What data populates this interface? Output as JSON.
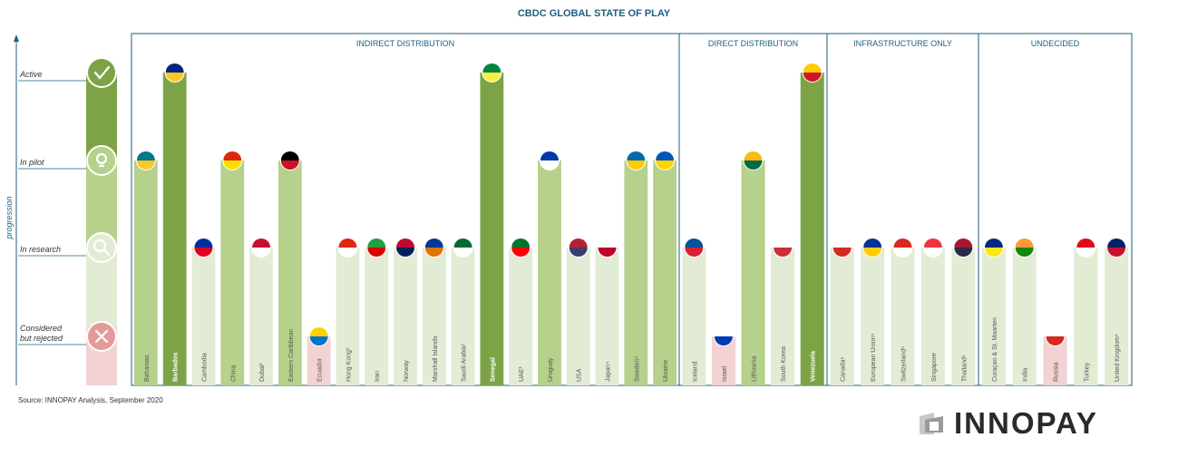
{
  "title": "CBDC GLOBAL STATE OF PLAY",
  "source": "Source: INNOPAY Analysis, September 2020",
  "logo_text": "INNOPAY",
  "chart_data": {
    "type": "bar",
    "title": "CBDC GLOBAL STATE OF PLAY",
    "ylabel": "progression",
    "levels": [
      "Considered but rejected",
      "In research",
      "In pilot",
      "Active"
    ],
    "level_labels": [
      "Considered\nbut rejected",
      "In research",
      "In pilot",
      "Active"
    ],
    "groups": [
      {
        "name": "INDIRECT DISTRIBUTION",
        "categories": [
          "Bahamas",
          "Barbados",
          "Cambodia",
          "China",
          "Dubai²",
          "Eastern Caribbean",
          "Ecuador",
          "Hong Kong³",
          "Iran",
          "Norway",
          "Marshall Islands",
          "Saudi Arabia¹",
          "Senegal",
          "UAE¹",
          "Uruguay",
          "USA",
          "Japan⁴",
          "Sweden⁴",
          "Ukraine"
        ]
      },
      {
        "name": "DIRECT DISTRIBUTION",
        "categories": [
          "Iceland",
          "Israel",
          "Lithuania",
          "South Korea",
          "Venezuela"
        ]
      },
      {
        "name": "INFRASTRUCTURE ONLY",
        "categories": [
          "Canada⁵",
          "European Union⁶",
          "Switzerland⁶",
          "Singapore",
          "Thailand⁵"
        ]
      },
      {
        "name": "UNDECIDED",
        "categories": [
          "Curaçao & St. Maarten",
          "India",
          "Russia",
          "Turkey",
          "United Kingdom⁴"
        ]
      }
    ],
    "values": [
      3,
      4,
      2,
      3,
      2,
      3,
      1,
      2,
      2,
      2,
      2,
      2,
      4,
      2,
      3,
      2,
      2,
      3,
      3,
      2,
      1,
      3,
      2,
      4,
      2,
      2,
      2,
      2,
      2,
      2,
      2,
      1,
      2,
      2
    ],
    "bold_labels": [
      "Barbados",
      "Senegal",
      "Venezuela"
    ],
    "colors": {
      "active": "#7ca446",
      "pilot": "#b5d18b",
      "research": "#e2ecd5",
      "rejected": "#f2d2d2",
      "line": "#1b5f82"
    }
  }
}
